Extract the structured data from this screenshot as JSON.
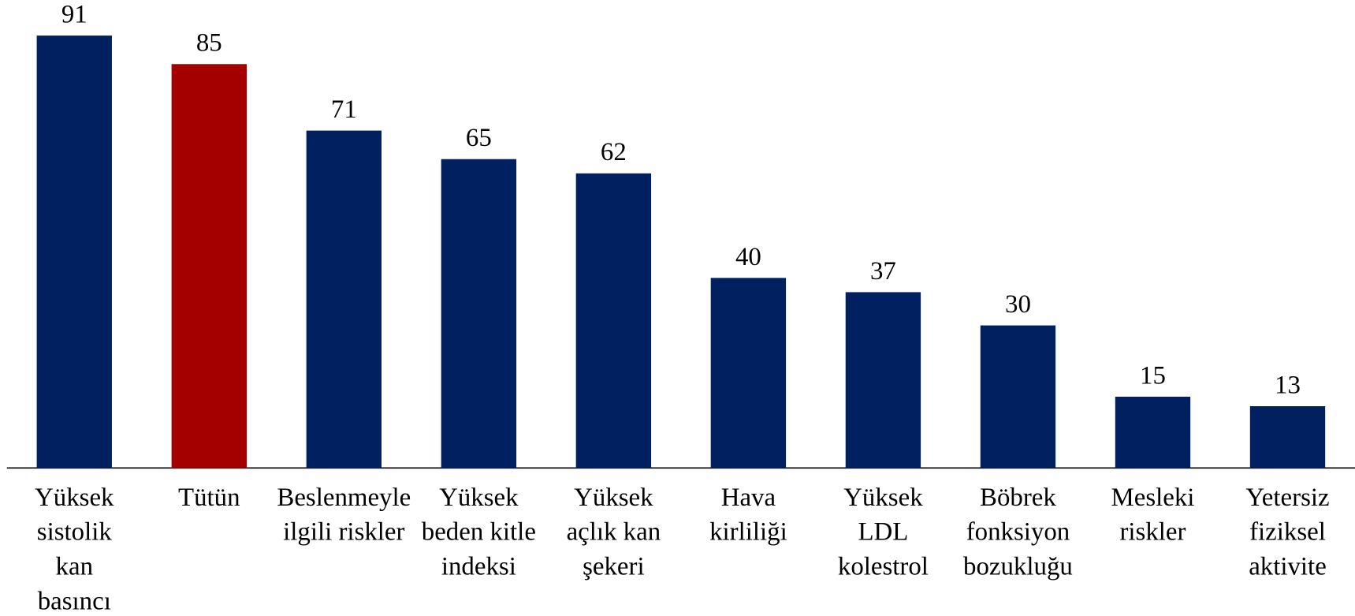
{
  "chart_data": {
    "type": "bar",
    "categories": [
      "Yüksek\nsistolik\nkan\nbasıncı",
      "Tütün",
      "Beslenmeyle\nilgili riskler",
      "Yüksek\nbeden kitle\nindeksi",
      "Yüksek\naçlık kan\nşekeri",
      "Hava\nkirliliği",
      "Yüksek\nLDL\nkolestrol",
      "Böbrek\nfonksiyon\nbozukluğu",
      "Mesleki\nriskler",
      "Yetersiz\nfiziksel\naktivite"
    ],
    "values": [
      91,
      85,
      71,
      65,
      62,
      40,
      37,
      30,
      15,
      13
    ],
    "colors": [
      "#002060",
      "#a50000",
      "#002060",
      "#002060",
      "#002060",
      "#002060",
      "#002060",
      "#002060",
      "#002060",
      "#002060"
    ],
    "ylim": [
      0,
      100
    ]
  }
}
